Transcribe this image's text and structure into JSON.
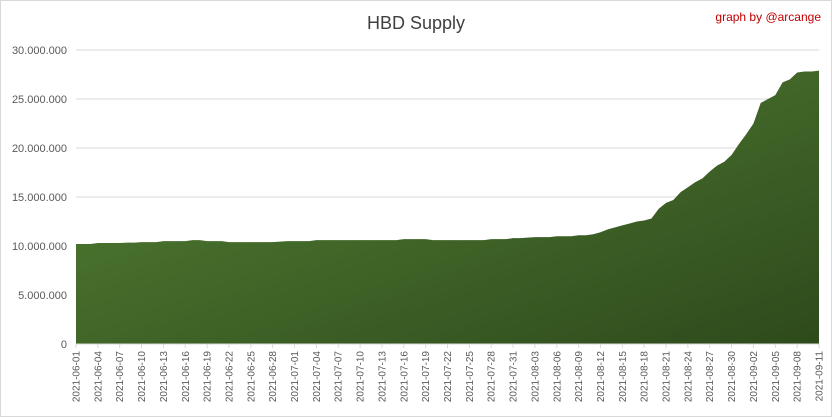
{
  "chart_data": {
    "type": "area",
    "title": "HBD Supply",
    "credit": "graph by @arcange",
    "xlabel": "",
    "ylabel": "",
    "ylim": [
      0,
      30000000
    ],
    "y_ticks": [
      {
        "value": 0,
        "label": "0"
      },
      {
        "value": 5000000,
        "label": "5.000.000"
      },
      {
        "value": 10000000,
        "label": "10.000.000"
      },
      {
        "value": 15000000,
        "label": "15.000.000"
      },
      {
        "value": 20000000,
        "label": "20.000.000"
      },
      {
        "value": 25000000,
        "label": "25.000.000"
      },
      {
        "value": 30000000,
        "label": "30.000.000"
      }
    ],
    "x_tick_labels": [
      "2021-06-01",
      "2021-06-04",
      "2021-06-07",
      "2021-06-10",
      "2021-06-13",
      "2021-06-16",
      "2021-06-19",
      "2021-06-22",
      "2021-06-25",
      "2021-06-28",
      "2021-07-01",
      "2021-07-04",
      "2021-07-07",
      "2021-07-10",
      "2021-07-13",
      "2021-07-16",
      "2021-07-19",
      "2021-07-22",
      "2021-07-25",
      "2021-07-28",
      "2021-07-31",
      "2021-08-03",
      "2021-08-06",
      "2021-08-09",
      "2021-08-12",
      "2021-08-15",
      "2021-08-18",
      "2021-08-21",
      "2021-08-24",
      "2021-08-27",
      "2021-08-30",
      "2021-09-02",
      "2021-09-05",
      "2021-09-08",
      "2021-09-11"
    ],
    "grid": "horizontal",
    "legend": "none",
    "colors": {
      "area_top": "#548235",
      "area_bottom": "#2e4a1c",
      "grid": "#d9d9d9",
      "credit": "#c00000"
    },
    "x": [
      "2021-06-01",
      "2021-06-02",
      "2021-06-03",
      "2021-06-04",
      "2021-06-05",
      "2021-06-06",
      "2021-06-07",
      "2021-06-08",
      "2021-06-09",
      "2021-06-10",
      "2021-06-11",
      "2021-06-12",
      "2021-06-13",
      "2021-06-14",
      "2021-06-15",
      "2021-06-16",
      "2021-06-17",
      "2021-06-18",
      "2021-06-19",
      "2021-06-20",
      "2021-06-21",
      "2021-06-22",
      "2021-06-23",
      "2021-06-24",
      "2021-06-25",
      "2021-06-26",
      "2021-06-27",
      "2021-06-28",
      "2021-06-29",
      "2021-06-30",
      "2021-07-01",
      "2021-07-02",
      "2021-07-03",
      "2021-07-04",
      "2021-07-05",
      "2021-07-06",
      "2021-07-07",
      "2021-07-08",
      "2021-07-09",
      "2021-07-10",
      "2021-07-11",
      "2021-07-12",
      "2021-07-13",
      "2021-07-14",
      "2021-07-15",
      "2021-07-16",
      "2021-07-17",
      "2021-07-18",
      "2021-07-19",
      "2021-07-20",
      "2021-07-21",
      "2021-07-22",
      "2021-07-23",
      "2021-07-24",
      "2021-07-25",
      "2021-07-26",
      "2021-07-27",
      "2021-07-28",
      "2021-07-29",
      "2021-07-30",
      "2021-07-31",
      "2021-08-01",
      "2021-08-02",
      "2021-08-03",
      "2021-08-04",
      "2021-08-05",
      "2021-08-06",
      "2021-08-07",
      "2021-08-08",
      "2021-08-09",
      "2021-08-10",
      "2021-08-11",
      "2021-08-12",
      "2021-08-13",
      "2021-08-14",
      "2021-08-15",
      "2021-08-16",
      "2021-08-17",
      "2021-08-18",
      "2021-08-19",
      "2021-08-20",
      "2021-08-21",
      "2021-08-22",
      "2021-08-23",
      "2021-08-24",
      "2021-08-25",
      "2021-08-26",
      "2021-08-27",
      "2021-08-28",
      "2021-08-29",
      "2021-08-30",
      "2021-08-31",
      "2021-09-01",
      "2021-09-02",
      "2021-09-03",
      "2021-09-04",
      "2021-09-05",
      "2021-09-06",
      "2021-09-07",
      "2021-09-08",
      "2021-09-09",
      "2021-09-10",
      "2021-09-11"
    ],
    "series": [
      {
        "values": [
          10200000,
          10200000,
          10200000,
          10300000,
          10300000,
          10300000,
          10300000,
          10350000,
          10350000,
          10400000,
          10400000,
          10400000,
          10500000,
          10500000,
          10500000,
          10500000,
          10600000,
          10600000,
          10500000,
          10500000,
          10500000,
          10400000,
          10400000,
          10400000,
          10400000,
          10400000,
          10400000,
          10400000,
          10450000,
          10500000,
          10500000,
          10500000,
          10500000,
          10600000,
          10600000,
          10600000,
          10600000,
          10600000,
          10600000,
          10600000,
          10600000,
          10600000,
          10600000,
          10600000,
          10600000,
          10700000,
          10700000,
          10700000,
          10700000,
          10600000,
          10600000,
          10600000,
          10600000,
          10600000,
          10600000,
          10600000,
          10600000,
          10700000,
          10700000,
          10700000,
          10800000,
          10800000,
          10850000,
          10900000,
          10900000,
          10900000,
          11000000,
          11000000,
          11000000,
          11100000,
          11100000,
          11200000,
          11400000,
          11700000,
          11900000,
          12100000,
          12300000,
          12500000,
          12600000,
          12800000,
          13800000,
          14400000,
          14700000,
          15500000,
          16000000,
          16500000,
          16900000,
          17600000,
          18200000,
          18600000,
          19300000,
          20400000,
          21400000,
          22500000,
          24600000,
          25000000,
          25400000,
          26700000,
          27000000,
          27700000,
          27800000,
          27800000,
          27900000
        ]
      }
    ]
  }
}
